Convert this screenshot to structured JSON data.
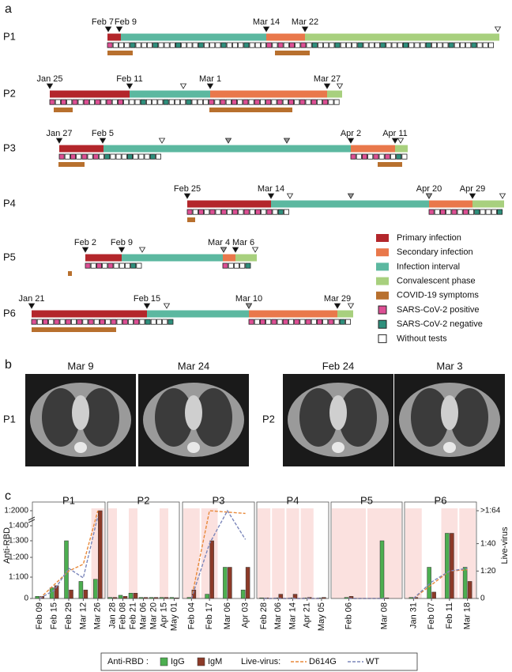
{
  "panel_a": {
    "label": "a",
    "patients": [
      {
        "name": "P1",
        "dates": [
          "Feb 7",
          "Feb 9",
          "Mar 14",
          "Mar 22"
        ]
      },
      {
        "name": "P2",
        "dates": [
          "Jan 25",
          "Feb 11",
          "Mar 1",
          "Mar 27"
        ]
      },
      {
        "name": "P3",
        "dates": [
          "Jan 27",
          "Feb 5",
          "Apr 2",
          "Apr 11"
        ]
      },
      {
        "name": "P4",
        "dates": [
          "Feb 25",
          "Mar 14",
          "Apr 20",
          "Apr 29"
        ]
      },
      {
        "name": "P5",
        "dates": [
          "Feb 2",
          "Feb 9",
          "Mar 4",
          "Mar 6"
        ]
      },
      {
        "name": "P6",
        "dates": [
          "Jan 21",
          "Feb 15",
          "Mar 10",
          "Mar 29"
        ]
      }
    ],
    "legend": [
      {
        "name": "Primary infection",
        "color": "#b3262b"
      },
      {
        "name": "Secondary infection",
        "color": "#e9784b"
      },
      {
        "name": "Infection interval",
        "color": "#5cb8a0"
      },
      {
        "name": "Convalescent phase",
        "color": "#a8d07e"
      },
      {
        "name": "COVID-19 symptoms",
        "color": "#b8702e"
      },
      {
        "name": "SARS-CoV-2 positive",
        "color": "#dd4f94"
      },
      {
        "name": "SARS-CoV-2 negative",
        "color": "#2e8f7c"
      },
      {
        "name": "Without tests",
        "color": "#ffffff"
      }
    ]
  },
  "panel_b": {
    "label": "b",
    "patients": [
      {
        "name": "P1",
        "scans": [
          "Mar 9",
          "Mar 24"
        ]
      },
      {
        "name": "P2",
        "scans": [
          "Feb 24",
          "Mar 3"
        ]
      }
    ]
  },
  "panel_c": {
    "label": "c",
    "legend_anti_rbd": "Anti-RBD :",
    "legend_live_virus": "Live-virus:"
  },
  "chart_data": [
    {
      "type": "bar",
      "title": "P1",
      "categories": [
        "Feb 09",
        "Feb 15",
        "Feb 29",
        "Mar 12",
        "Mar 26"
      ],
      "series": [
        {
          "name": "IgG",
          "color": "#4cae50",
          "values": [
            10,
            50,
            300,
            80,
            90
          ]
        },
        {
          "name": "IgM",
          "color": "#8c3a28",
          "values": [
            10,
            60,
            40,
            40,
            2000
          ]
        },
        {
          "name": "D614G",
          "type": "line",
          "axis": "y2",
          "color": "#e8893a",
          "values": [
            0,
            10,
            20,
            25,
            64
          ]
        },
        {
          "name": "WT",
          "type": "line",
          "axis": "y2",
          "color": "#7b86ba",
          "values": [
            0,
            6,
            22,
            15,
            60
          ]
        }
      ],
      "ylim": [
        0,
        2000
      ],
      "yticks": [
        0,
        {
          "value": 100,
          "label": "1:100"
        },
        {
          "value": 200,
          "label": "1:200"
        },
        {
          "value": 300,
          "label": "1:300"
        },
        {
          "value": 400,
          "label": "1:400"
        },
        {
          "value": 2000,
          "label": "1:2000"
        }
      ],
      "ylabel": "Anti-RBD"
    },
    {
      "type": "bar",
      "title": "P2",
      "categories": [
        "Jan 28",
        "Feb 08",
        "Feb 21",
        "Mar 06",
        "Mar 20",
        "Apr 15",
        "May 01"
      ],
      "series": [
        {
          "color": "#4cae50",
          "values": [
            5,
            15,
            25,
            5,
            5,
            5,
            5
          ]
        },
        {
          "color": "#8c3a28",
          "values": [
            5,
            10,
            25,
            5,
            5,
            5,
            3
          ]
        }
      ]
    },
    {
      "type": "bar",
      "title": "P3",
      "categories": [
        "Feb 04",
        "Feb 17",
        "Mar 06",
        "Apr 03"
      ],
      "series": [
        {
          "color": "#4cae50",
          "values": [
            5,
            20,
            150,
            40
          ]
        },
        {
          "color": "#8c3a28",
          "values": [
            40,
            300,
            150,
            150
          ]
        },
        {
          "type": "line",
          "axis": "y2",
          "color": "#e8893a",
          "values": [
            0,
            64,
            63,
            62
          ]
        },
        {
          "type": "line",
          "axis": "y2",
          "color": "#7b86ba",
          "values": [
            0,
            40,
            64,
            43
          ]
        }
      ]
    },
    {
      "type": "bar",
      "title": "P4",
      "categories": [
        "Feb 28",
        "Mar 06",
        "Mar 14",
        "Apr 21",
        "May 05"
      ],
      "series": [
        {
          "color": "#4cae50",
          "values": [
            3,
            3,
            3,
            3,
            3
          ]
        },
        {
          "color": "#8c3a28",
          "values": [
            3,
            20,
            20,
            5,
            5
          ]
        },
        {
          "type": "line",
          "axis": "y2",
          "color": "#e8893a",
          "values": [
            0,
            0,
            0,
            0,
            0
          ]
        },
        {
          "type": "line",
          "axis": "y2",
          "color": "#7b86ba",
          "values": [
            0,
            0,
            0,
            0,
            0
          ]
        }
      ]
    },
    {
      "type": "bar",
      "title": "P5",
      "categories": [
        "Feb 06",
        "Mar 08"
      ],
      "series": [
        {
          "color": "#4cae50",
          "values": [
            5,
            300
          ]
        },
        {
          "color": "#8c3a28",
          "values": [
            10,
            3
          ]
        },
        {
          "type": "line",
          "axis": "y2",
          "color": "#e8893a",
          "values": [
            0,
            0
          ]
        },
        {
          "type": "line",
          "axis": "y2",
          "color": "#7b86ba",
          "values": [
            0,
            0
          ]
        }
      ]
    },
    {
      "type": "bar",
      "title": "P6",
      "categories": [
        "Jan 31",
        "Feb 07",
        "Feb 11",
        "Mar 18"
      ],
      "series": [
        {
          "color": "#4cae50",
          "values": [
            5,
            150,
            350,
            150
          ]
        },
        {
          "color": "#8c3a28",
          "values": [
            5,
            30,
            350,
            80
          ]
        },
        {
          "type": "line",
          "axis": "y2",
          "color": "#e8893a",
          "values": [
            0,
            10,
            20,
            21
          ]
        },
        {
          "type": "line",
          "axis": "y2",
          "color": "#7b86ba",
          "values": [
            0,
            12,
            20,
            22
          ]
        }
      ],
      "y2lim": [
        0,
        64
      ],
      "y2ticks": [
        0,
        {
          "value": 20,
          "label": "1:20"
        },
        {
          "value": 40,
          "label": "1:40"
        },
        {
          "value": 64,
          "label": ">1:64"
        }
      ],
      "y2label": "Live-virus"
    }
  ]
}
